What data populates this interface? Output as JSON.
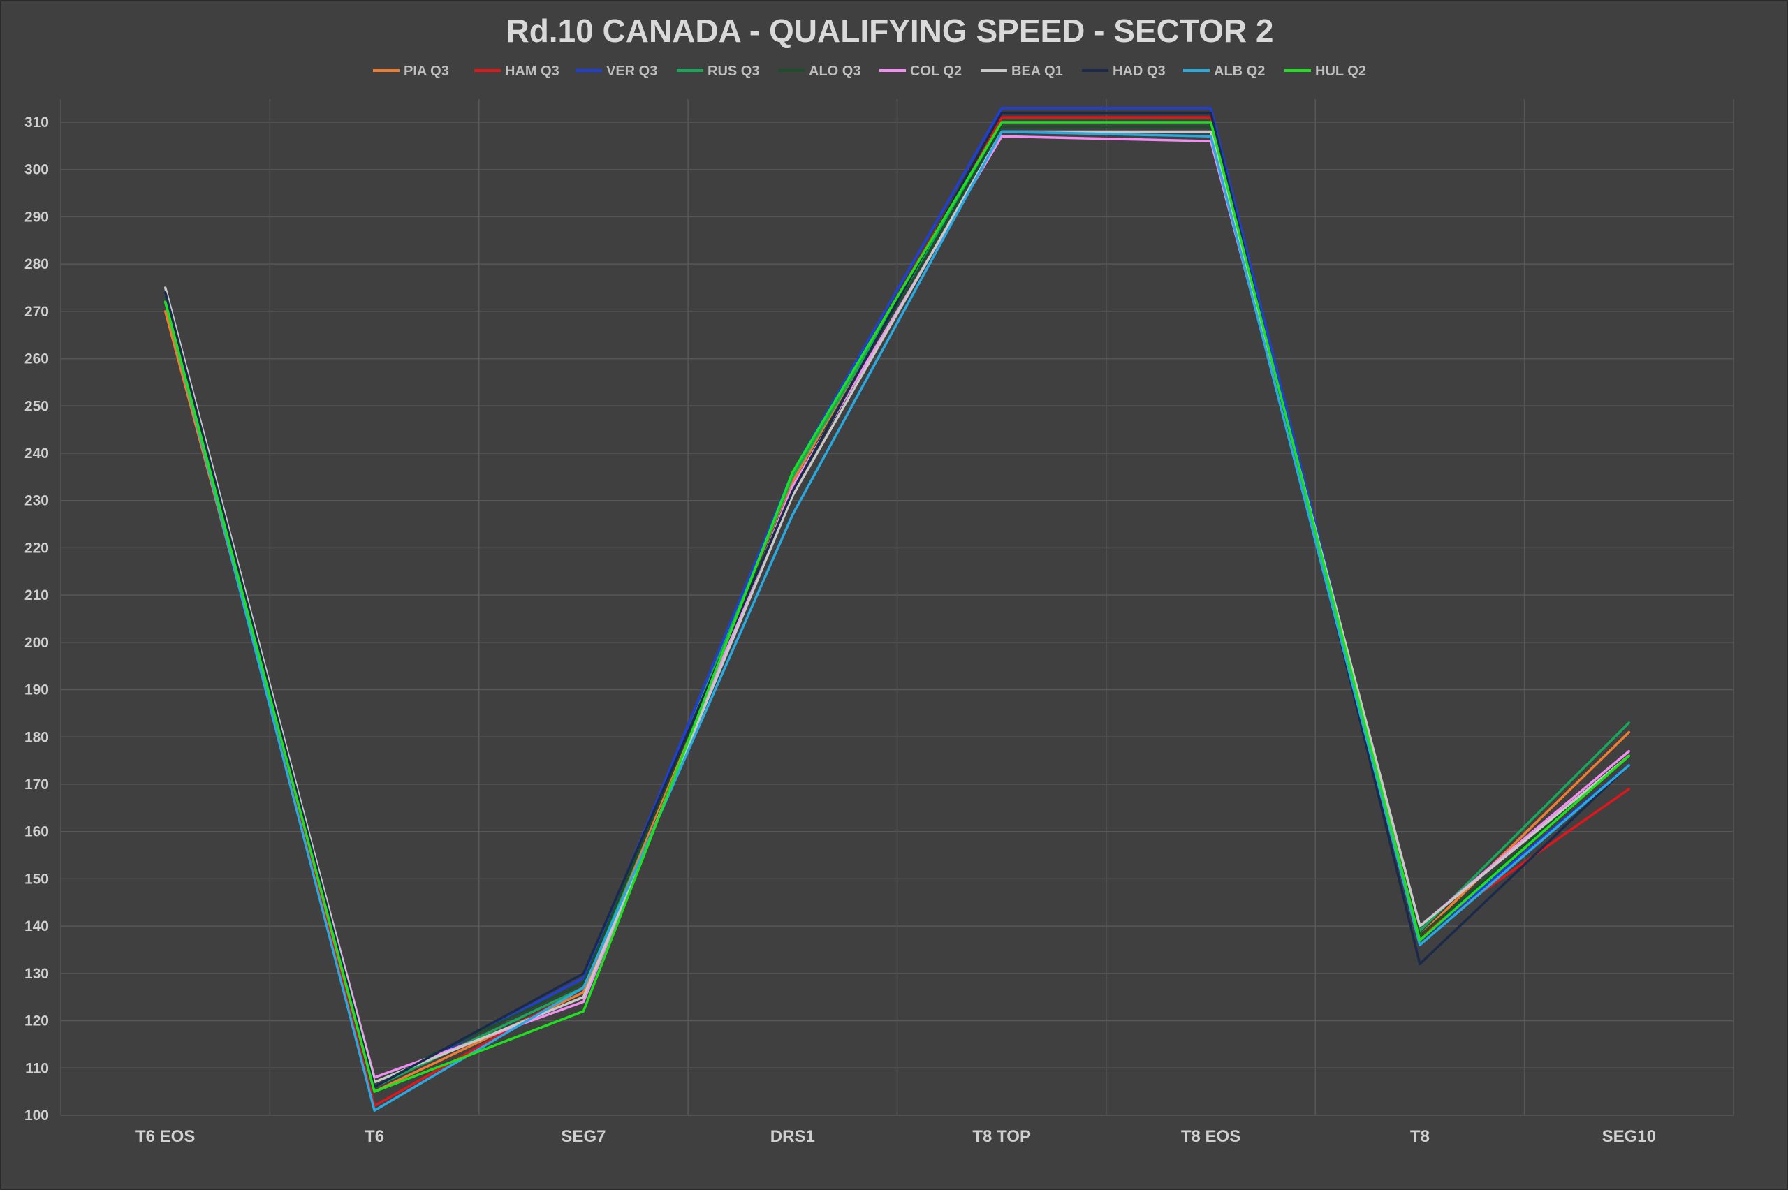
{
  "chart_data": {
    "type": "line",
    "title": "Rd.10 CANADA - QUALIFYING SPEED - SECTOR 2",
    "xlabel": "",
    "ylabel": "",
    "ylim": [
      100,
      310
    ],
    "yticks": [
      100,
      110,
      120,
      130,
      140,
      150,
      160,
      170,
      180,
      190,
      200,
      210,
      220,
      230,
      240,
      250,
      260,
      270,
      280,
      290,
      300,
      310
    ],
    "grid": true,
    "legend_position": "top",
    "categories": [
      "T6 EOS",
      "T6",
      "SEG7",
      "DRS1",
      "T8 TOP",
      "T8 EOS",
      "T8",
      "SEG10"
    ],
    "series": [
      {
        "name": "PIA Q3",
        "color": "#ed7d31",
        "values": [
          270,
          105,
          126,
          234,
          311,
          311,
          138,
          181
        ]
      },
      {
        "name": "HAM  Q3",
        "color": "#e0161b",
        "values": [
          272,
          102,
          127,
          235,
          311,
          311,
          138,
          169
        ]
      },
      {
        "name": "VER Q3",
        "color": "#1f3fd6",
        "values": [
          273,
          106,
          129,
          236,
          313,
          313,
          137,
          174
        ]
      },
      {
        "name": "RUS Q3",
        "color": "#17a85a",
        "values": [
          273,
          106,
          127,
          235,
          309,
          309,
          139,
          183
        ]
      },
      {
        "name": "ALO Q3",
        "color": "#1e4d2b",
        "values": [
          273,
          107,
          128,
          233,
          309,
          309,
          138,
          176
        ]
      },
      {
        "name": "COL Q2",
        "color": "#f08ff0",
        "values": [
          272,
          108,
          124,
          233,
          307,
          306,
          140,
          177
        ]
      },
      {
        "name": "BEA Q1",
        "color": "#c8c8c8",
        "values": [
          275,
          107,
          125,
          231,
          308,
          308,
          140,
          176
        ]
      },
      {
        "name": "HAD Q3",
        "color": "#1b2a4a",
        "values": [
          274,
          106,
          130,
          232,
          312,
          312,
          132,
          174
        ]
      },
      {
        "name": "ALB Q2",
        "color": "#2aa8e0",
        "values": [
          272,
          101,
          127,
          227,
          308,
          307,
          136,
          174
        ]
      },
      {
        "name": "HUL Q2",
        "color": "#1fe01f",
        "values": [
          272,
          105,
          122,
          236,
          310,
          310,
          137,
          176
        ]
      }
    ]
  },
  "colors": {
    "background": "#404040",
    "grid": "#575757",
    "text": "#d9d9d9"
  }
}
